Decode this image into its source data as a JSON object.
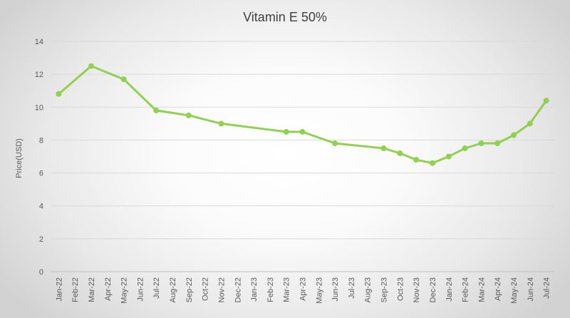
{
  "chart_data": {
    "type": "line",
    "title": "Vitamin E 50%",
    "xlabel": "",
    "ylabel": "Price(USD)",
    "ylim": [
      0,
      14
    ],
    "yticks": [
      0,
      2,
      4,
      6,
      8,
      10,
      12,
      14
    ],
    "grid": true,
    "legend": "none",
    "line_color": "#92D050",
    "categories": [
      "Jan-22",
      "Feb-22",
      "Mar-22",
      "Apr-22",
      "May-22",
      "Jun-22",
      "Jul-22",
      "Aug-22",
      "Sep-22",
      "Oct-22",
      "Nov-22",
      "Dec-22",
      "Jan-23",
      "Feb-23",
      "Mar-23",
      "Apr-23",
      "May-23",
      "Jun-23",
      "Jul-23",
      "Aug-23",
      "Sep-23",
      "Oct-23",
      "Nov-23",
      "Dec-23",
      "Jan-24",
      "Feb-24",
      "Mar-24",
      "Apr-24",
      "May-24",
      "Jun-24",
      "Jul-24"
    ],
    "series": [
      {
        "name": "Vitamin E 50%",
        "points": [
          {
            "x": "Jan-22",
            "y": 10.8
          },
          {
            "x": "Mar-22",
            "y": 12.5
          },
          {
            "x": "May-22",
            "y": 11.7
          },
          {
            "x": "Jul-22",
            "y": 9.8
          },
          {
            "x": "Sep-22",
            "y": 9.5
          },
          {
            "x": "Nov-22",
            "y": 9.0
          },
          {
            "x": "Mar-23",
            "y": 8.5
          },
          {
            "x": "Apr-23",
            "y": 8.5
          },
          {
            "x": "Jun-23",
            "y": 7.8
          },
          {
            "x": "Sep-23",
            "y": 7.5
          },
          {
            "x": "Oct-23",
            "y": 7.2
          },
          {
            "x": "Nov-23",
            "y": 6.8
          },
          {
            "x": "Dec-23",
            "y": 6.6
          },
          {
            "x": "Jan-24",
            "y": 7.0
          },
          {
            "x": "Feb-24",
            "y": 7.5
          },
          {
            "x": "Mar-24",
            "y": 7.8
          },
          {
            "x": "Apr-24",
            "y": 7.8
          },
          {
            "x": "May-24",
            "y": 8.3
          },
          {
            "x": "Jun-24",
            "y": 9.0
          },
          {
            "x": "Jul-24",
            "y": 10.4
          }
        ]
      }
    ]
  }
}
